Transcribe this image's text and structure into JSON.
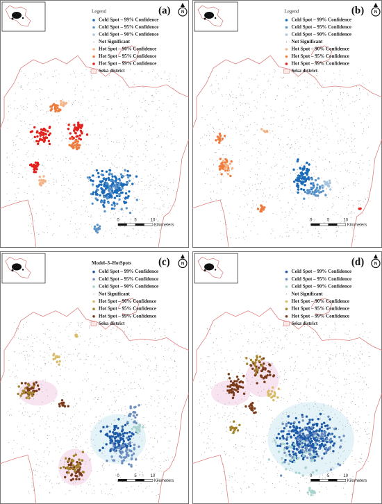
{
  "panels": [
    {
      "label": "(a)",
      "legend_title": "Legend",
      "north": "N",
      "legend": [
        {
          "text": "Cold Spot – 99% Confidence",
          "color": "#1c6bb8"
        },
        {
          "text": "Cold Spot – 95% Confidence",
          "color": "#5b93c9"
        },
        {
          "text": "Cold Spot – 90% Confidence",
          "color": "#a8c4de"
        },
        {
          "text": "Not Significant",
          "color": "#9a9a9a"
        },
        {
          "text": "Hot Spot – 90% Confidence",
          "color": "#f3b487"
        },
        {
          "text": "Hot Spot – 95% Confidence",
          "color": "#ee7c3e"
        },
        {
          "text": "Hot Spot – 99% Confidence",
          "color": "#e3211c"
        }
      ],
      "district": "Seka district",
      "scale_ticks": [
        0,
        5,
        10
      ],
      "scale_unit": "Kilometers"
    },
    {
      "label": "(b)",
      "legend_title": "Legend",
      "north": "N",
      "legend": [
        {
          "text": "Cold Spot – 99% Confidence",
          "color": "#1c6bb8"
        },
        {
          "text": "Cold Spot – 95% Confidence",
          "color": "#5b93c9"
        },
        {
          "text": "Cold Spot – 90% Confidence",
          "color": "#a8c4de"
        },
        {
          "text": "Not Significant",
          "color": "#9a9a9a"
        },
        {
          "text": "Hot Spot – 90% Confidence",
          "color": "#f3b487"
        },
        {
          "text": "Hot Spot – 95% Confidence",
          "color": "#ee7c3e"
        },
        {
          "text": "Hot Spot – 99% Confidence",
          "color": "#e3211c"
        }
      ],
      "district": "Seka district",
      "scale_ticks": [
        0,
        5,
        10
      ],
      "scale_unit": "Kilometers"
    },
    {
      "label": "(c)",
      "legend_title": "Model–3–HotSpots",
      "north": "N",
      "legend": [
        {
          "text": "Cold Spot – 99% Confidence",
          "color": "#1f5aa8"
        },
        {
          "text": "Cold Spot – 95% Confidence",
          "color": "#6f8fc0"
        },
        {
          "text": "Cold Spot – 90% Confidence",
          "color": "#a9d3cf"
        },
        {
          "text": "Not Significant",
          "color": "#9a9a9a"
        },
        {
          "text": "Hot Spot – 90% Confidence",
          "color": "#d9bc6a"
        },
        {
          "text": "Hot Spot – 95% Confidence",
          "color": "#a5832e"
        },
        {
          "text": "Hot Spot – 99% Confidence",
          "color": "#7b3b1a"
        }
      ],
      "district": "Seka district",
      "scale_ticks": [
        0,
        5,
        10
      ],
      "scale_unit": "Kilometers"
    },
    {
      "label": "(d)",
      "legend_title": "",
      "north": "N",
      "legend": [
        {
          "text": "Cold Spot – 99% Confidence",
          "color": "#1f5aa8"
        },
        {
          "text": "Cold Spot – 95% Confidence",
          "color": "#6f8fc0"
        },
        {
          "text": "Cold Spot – 90% Confidence",
          "color": "#a9d3cf"
        },
        {
          "text": "Not Significant",
          "color": "#9a9a9a"
        },
        {
          "text": "Hot Spot – 90% Confidence",
          "color": "#d9bc6a"
        },
        {
          "text": "Hot Spot – 95% Confidence",
          "color": "#a5832e"
        },
        {
          "text": "Hot Spot – 99% Confidence",
          "color": "#7b3b1a"
        }
      ],
      "district": "Seka district",
      "scale_ticks": [
        0,
        5,
        10
      ],
      "scale_unit": "Kilometers"
    }
  ]
}
